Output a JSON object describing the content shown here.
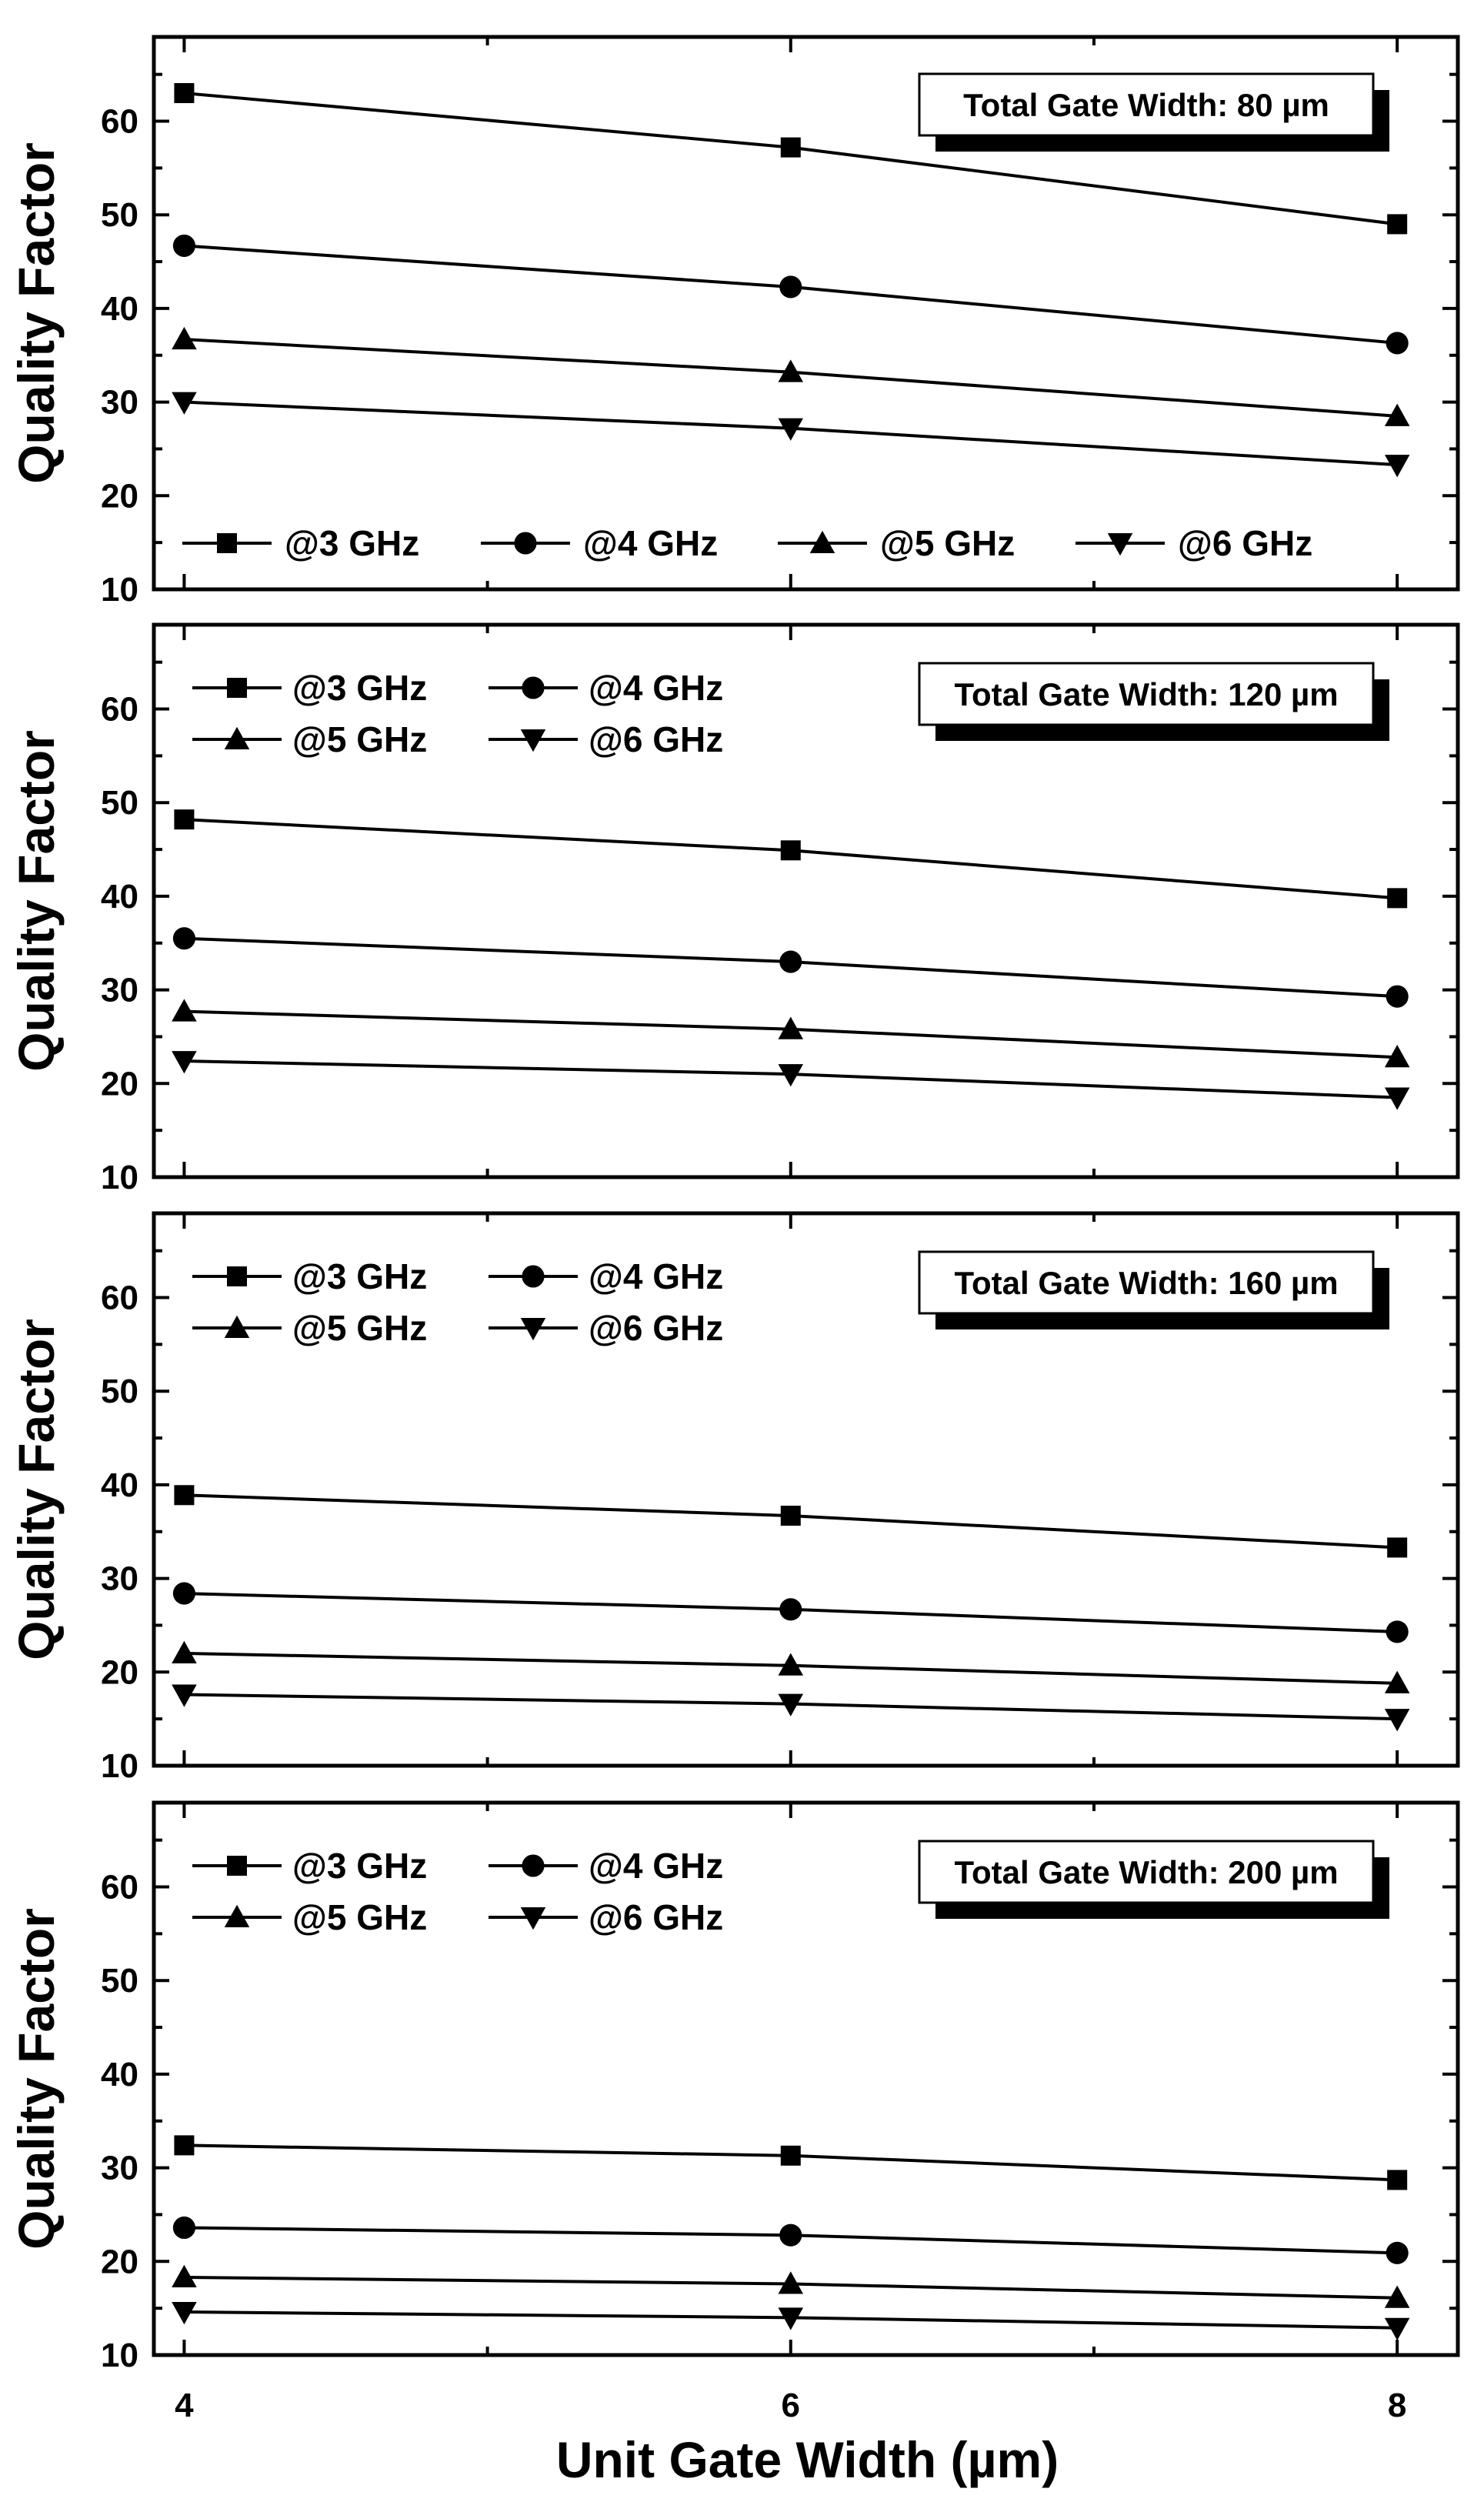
{
  "chart_data": [
    {
      "type": "line",
      "annotation": "Total Gate Width: 80 µm",
      "legend_layout": "single-row-bottom",
      "xlabel": "Unit Gate Width (µm)",
      "ylabel": "Quality Factor",
      "x": [
        4,
        6,
        8
      ],
      "xlim": [
        3.9,
        8.2
      ],
      "ylim": [
        10,
        69
      ],
      "yticks": [
        10,
        20,
        30,
        40,
        50,
        60
      ],
      "series": [
        {
          "name": "@3 GHz",
          "marker": "square",
          "values": [
            63.0,
            57.2,
            49.0
          ]
        },
        {
          "name": "@4 GHz",
          "marker": "circle",
          "values": [
            46.7,
            42.3,
            36.3
          ]
        },
        {
          "name": "@5 GHz",
          "marker": "triangle-up",
          "values": [
            36.7,
            33.2,
            28.5
          ]
        },
        {
          "name": "@6 GHz",
          "marker": "triangle-down",
          "values": [
            30.0,
            27.2,
            23.3
          ]
        }
      ]
    },
    {
      "type": "line",
      "annotation": "Total Gate Width: 120 µm",
      "legend_layout": "two-rows-top-left",
      "xlabel": "Unit Gate Width (µm)",
      "ylabel": "Quality Factor",
      "x": [
        4,
        6,
        8
      ],
      "xlim": [
        3.9,
        8.2
      ],
      "ylim": [
        10,
        69
      ],
      "yticks": [
        10,
        20,
        30,
        40,
        50,
        60
      ],
      "series": [
        {
          "name": "@3 GHz",
          "marker": "square",
          "values": [
            48.2,
            44.9,
            39.8
          ]
        },
        {
          "name": "@4 GHz",
          "marker": "circle",
          "values": [
            35.5,
            33.0,
            29.3
          ]
        },
        {
          "name": "@5 GHz",
          "marker": "triangle-up",
          "values": [
            27.7,
            25.8,
            22.8
          ]
        },
        {
          "name": "@6 GHz",
          "marker": "triangle-down",
          "values": [
            22.4,
            21.0,
            18.5
          ]
        }
      ]
    },
    {
      "type": "line",
      "annotation": "Total Gate Width: 160 µm",
      "legend_layout": "two-rows-top-left",
      "xlabel": "Unit Gate Width (µm)",
      "ylabel": "Quality Factor",
      "x": [
        4,
        6,
        8
      ],
      "xlim": [
        3.9,
        8.2
      ],
      "ylim": [
        10,
        69
      ],
      "yticks": [
        10,
        20,
        30,
        40,
        50,
        60
      ],
      "series": [
        {
          "name": "@3 GHz",
          "marker": "square",
          "values": [
            38.9,
            36.7,
            33.3
          ]
        },
        {
          "name": "@4 GHz",
          "marker": "circle",
          "values": [
            28.4,
            26.7,
            24.3
          ]
        },
        {
          "name": "@5 GHz",
          "marker": "triangle-up",
          "values": [
            22.0,
            20.7,
            18.8
          ]
        },
        {
          "name": "@6 GHz",
          "marker": "triangle-down",
          "values": [
            17.6,
            16.6,
            15.0
          ]
        }
      ]
    },
    {
      "type": "line",
      "annotation": "Total Gate Width: 200 µm",
      "legend_layout": "two-rows-top-left",
      "xlabel": "Unit Gate Width (µm)",
      "ylabel": "Quality Factor",
      "x": [
        4,
        6,
        8
      ],
      "xlim": [
        3.9,
        8.2
      ],
      "ylim": [
        10,
        69
      ],
      "yticks": [
        10,
        20,
        30,
        40,
        50,
        60
      ],
      "series": [
        {
          "name": "@3 GHz",
          "marker": "square",
          "values": [
            32.4,
            31.3,
            28.7
          ]
        },
        {
          "name": "@4 GHz",
          "marker": "circle",
          "values": [
            23.6,
            22.8,
            20.9
          ]
        },
        {
          "name": "@5 GHz",
          "marker": "triangle-up",
          "values": [
            18.3,
            17.6,
            16.1
          ]
        },
        {
          "name": "@6 GHz",
          "marker": "triangle-down",
          "values": [
            14.6,
            14.0,
            12.9
          ]
        }
      ]
    }
  ]
}
